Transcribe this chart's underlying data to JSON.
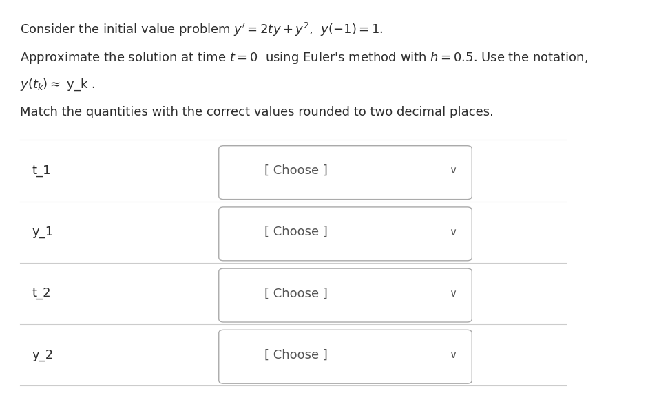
{
  "rows": [
    {
      "label": "t_1",
      "dropdown": "[ Choose ]"
    },
    {
      "label": "y_1",
      "dropdown": "[ Choose ]"
    },
    {
      "label": "t_2",
      "dropdown": "[ Choose ]"
    },
    {
      "label": "y_2",
      "dropdown": "[ Choose ]"
    }
  ],
  "bg_color": "#ffffff",
  "text_color": "#2d2d2d",
  "label_fontsize": 13,
  "body_fontsize": 13,
  "dropdown_text_color": "#555555",
  "divider_color": "#cccccc",
  "dropdown_border_color": "#aaaaaa",
  "dropdown_bg": "#ffffff",
  "chevron_color": "#555555"
}
